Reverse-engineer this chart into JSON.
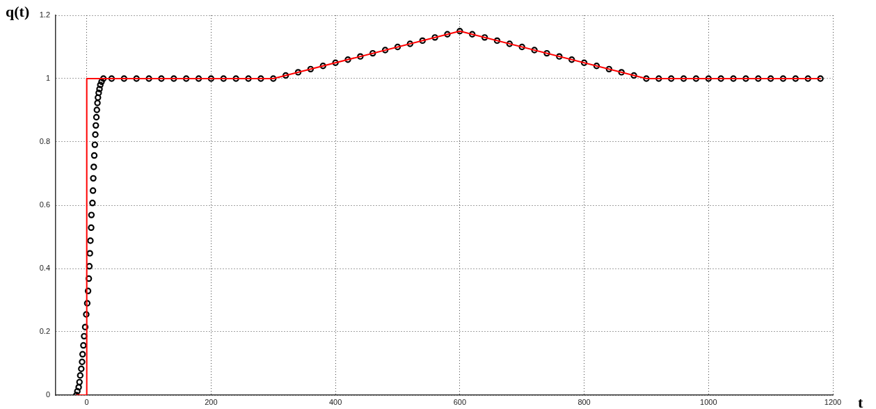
{
  "chart_data": {
    "type": "scatter",
    "xlabel": "t",
    "ylabel": "q(t)",
    "xlim": [
      -50,
      1200
    ],
    "ylim": [
      0,
      1.2
    ],
    "xticks": [
      0,
      200,
      400,
      600,
      800,
      1000,
      1200
    ],
    "yticks": [
      0,
      0.2,
      0.4,
      0.6,
      0.8,
      1,
      1.2
    ],
    "grid": true,
    "legend": false,
    "series": [
      {
        "type": "scatter",
        "color": "#000000",
        "marker": "circle",
        "x": [
          -16.7,
          -15.1,
          -13,
          -11.7,
          -10.5,
          -8.8,
          -7.5,
          -6.7,
          -5.4,
          -4.2,
          -2.5,
          -0.8,
          0.8,
          2.1,
          3.3,
          4.2,
          5,
          5.9,
          7.1,
          7.5,
          9.2,
          10,
          10.5,
          11.3,
          12.1,
          13,
          13.8,
          14.6,
          15.5,
          16.3,
          17.2,
          18,
          19.2,
          20.5,
          21.8,
          23.8,
          26.8,
          40,
          60,
          80,
          100,
          120,
          140,
          160,
          180,
          200,
          220,
          240,
          260,
          280,
          300,
          320,
          340,
          360,
          380,
          400,
          420,
          440,
          460,
          480,
          500,
          520,
          540,
          560,
          580,
          600,
          620,
          640,
          660,
          680,
          700,
          720,
          740,
          760,
          780,
          800,
          820,
          840,
          860,
          880,
          900,
          920,
          940,
          960,
          980,
          1000,
          1020,
          1040,
          1060,
          1080,
          1100,
          1120,
          1140,
          1160,
          1180
        ],
        "values": [
          0,
          0.012,
          0.025,
          0.041,
          0.062,
          0.083,
          0.105,
          0.129,
          0.157,
          0.186,
          0.215,
          0.255,
          0.29,
          0.329,
          0.368,
          0.407,
          0.448,
          0.488,
          0.529,
          0.569,
          0.607,
          0.646,
          0.685,
          0.721,
          0.757,
          0.791,
          0.823,
          0.852,
          0.878,
          0.901,
          0.923,
          0.94,
          0.955,
          0.967,
          0.98,
          0.99,
          1,
          1,
          1,
          1,
          1,
          1,
          1,
          1,
          1,
          1,
          1,
          1,
          1,
          1,
          1,
          1.01,
          1.02,
          1.03,
          1.04,
          1.05,
          1.06,
          1.07,
          1.08,
          1.09,
          1.1,
          1.11,
          1.12,
          1.13,
          1.14,
          1.15,
          1.14,
          1.13,
          1.12,
          1.11,
          1.1,
          1.09,
          1.08,
          1.07,
          1.06,
          1.05,
          1.04,
          1.03,
          1.02,
          1.01,
          1,
          1,
          1,
          1,
          1,
          1,
          1,
          1,
          1,
          1,
          1,
          1,
          1,
          1,
          1
        ]
      },
      {
        "type": "line",
        "color": "#ff0000",
        "marker": "none",
        "line_style": "solid",
        "x": [
          -16,
          0,
          0,
          300,
          600,
          900,
          1180
        ],
        "values": [
          0,
          0,
          1,
          1,
          1.15,
          1,
          1
        ]
      }
    ]
  }
}
